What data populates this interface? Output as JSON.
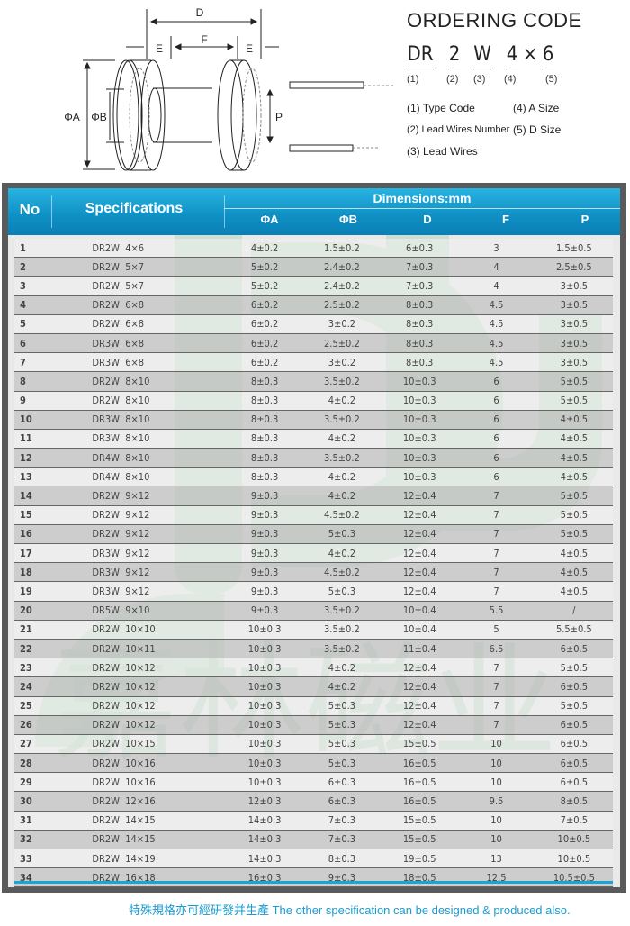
{
  "diagram": {
    "labels": {
      "d": "D",
      "e_left": "E",
      "f": "F",
      "e_right": "E",
      "phi_a": "ΦA",
      "phi_b": "ΦB",
      "p": "P"
    }
  },
  "ordering": {
    "title": "ORDERING CODE",
    "code": [
      "DR",
      "2",
      "W",
      "4",
      "×",
      "6"
    ],
    "indices": [
      "(1)",
      "(2)",
      "(3)",
      "(4)",
      "(5)"
    ],
    "legend": [
      "(1) Type Code",
      "(4) A Size",
      "(2) Lead Wires Number",
      "(5) D Size",
      "(3) Lead Wires"
    ]
  },
  "watermark": {
    "text": "嘉林磁业",
    "color": "#b9d6bf"
  },
  "table": {
    "header": {
      "no": "No",
      "spec": "Specifications",
      "dims": "Dimensions:mm",
      "cols": [
        "ΦA",
        "ΦB",
        "D",
        "F",
        "P"
      ]
    },
    "rows": [
      [
        "1",
        "DR2W  4×6",
        "4±0.2",
        "1.5±0.2",
        "6±0.3",
        "3",
        "1.5±0.5"
      ],
      [
        "2",
        "DR2W  5×7",
        "5±0.2",
        "2.4±0.2",
        "7±0.3",
        "4",
        "2.5±0.5"
      ],
      [
        "3",
        "DR2W  5×7",
        "5±0.2",
        "2.4±0.2",
        "7±0.3",
        "4",
        "3±0.5"
      ],
      [
        "4",
        "DR2W  6×8",
        "6±0.2",
        "2.5±0.2",
        "8±0.3",
        "4.5",
        "3±0.5"
      ],
      [
        "5",
        "DR2W  6×8",
        "6±0.2",
        "3±0.2",
        "8±0.3",
        "4.5",
        "3±0.5"
      ],
      [
        "6",
        "DR3W  6×8",
        "6±0.2",
        "2.5±0.2",
        "8±0.3",
        "4.5",
        "3±0.5"
      ],
      [
        "7",
        "DR3W  6×8",
        "6±0.2",
        "3±0.2",
        "8±0.3",
        "4.5",
        "3±0.5"
      ],
      [
        "8",
        "DR2W  8×10",
        "8±0.3",
        "3.5±0.2",
        "10±0.3",
        "6",
        "5±0.5"
      ],
      [
        "9",
        "DR2W  8×10",
        "8±0.3",
        "4±0.2",
        "10±0.3",
        "6",
        "5±0.5"
      ],
      [
        "10",
        "DR3W  8×10",
        "8±0.3",
        "3.5±0.2",
        "10±0.3",
        "6",
        "4±0.5"
      ],
      [
        "11",
        "DR3W  8×10",
        "8±0.3",
        "4±0.2",
        "10±0.3",
        "6",
        "4±0.5"
      ],
      [
        "12",
        "DR4W  8×10",
        "8±0.3",
        "3.5±0.2",
        "10±0.3",
        "6",
        "4±0.5"
      ],
      [
        "13",
        "DR4W  8×10",
        "8±0.3",
        "4±0.2",
        "10±0.3",
        "6",
        "4±0.5"
      ],
      [
        "14",
        "DR2W  9×12",
        "9±0.3",
        "4±0.2",
        "12±0.4",
        "7",
        "5±0.5"
      ],
      [
        "15",
        "DR2W  9×12",
        "9±0.3",
        "4.5±0.2",
        "12±0.4",
        "7",
        "5±0.5"
      ],
      [
        "16",
        "DR2W  9×12",
        "9±0.3",
        "5±0.3",
        "12±0.4",
        "7",
        "5±0.5"
      ],
      [
        "17",
        "DR3W  9×12",
        "9±0.3",
        "4±0.2",
        "12±0.4",
        "7",
        "4±0.5"
      ],
      [
        "18",
        "DR3W  9×12",
        "9±0.3",
        "4.5±0.2",
        "12±0.4",
        "7",
        "4±0.5"
      ],
      [
        "19",
        "DR3W  9×12",
        "9±0.3",
        "5±0.3",
        "12±0.4",
        "7",
        "4±0.5"
      ],
      [
        "20",
        "DR5W  9×10",
        "9±0.3",
        "3.5±0.2",
        "10±0.4",
        "5.5",
        "/"
      ],
      [
        "21",
        "DR2W  10×10",
        "10±0.3",
        "3.5±0.2",
        "10±0.4",
        "5",
        "5.5±0.5"
      ],
      [
        "22",
        "DR2W  10×11",
        "10±0.3",
        "3.5±0.2",
        "11±0.4",
        "6.5",
        "6±0.5"
      ],
      [
        "23",
        "DR2W  10×12",
        "10±0.3",
        "4±0.2",
        "12±0.4",
        "7",
        "5±0.5"
      ],
      [
        "24",
        "DR2W  10×12",
        "10±0.3",
        "4±0.2",
        "12±0.4",
        "7",
        "6±0.5"
      ],
      [
        "25",
        "DR2W  10×12",
        "10±0.3",
        "5±0.3",
        "12±0.4",
        "7",
        "5±0.5"
      ],
      [
        "26",
        "DR2W  10×12",
        "10±0.3",
        "5±0.3",
        "12±0.4",
        "7",
        "6±0.5"
      ],
      [
        "27",
        "DR2W  10×15",
        "10±0.3",
        "5±0.3",
        "15±0.5",
        "10",
        "6±0.5"
      ],
      [
        "28",
        "DR2W  10×16",
        "10±0.3",
        "5±0.3",
        "16±0.5",
        "10",
        "6±0.5"
      ],
      [
        "29",
        "DR2W  10×16",
        "10±0.3",
        "6±0.3",
        "16±0.5",
        "10",
        "6±0.5"
      ],
      [
        "30",
        "DR2W  12×16",
        "12±0.3",
        "6±0.3",
        "16±0.5",
        "9.5",
        "8±0.5"
      ],
      [
        "31",
        "DR2W  14×15",
        "14±0.3",
        "7±0.3",
        "15±0.5",
        "10",
        "7±0.5"
      ],
      [
        "32",
        "DR2W  14×15",
        "14±0.3",
        "7±0.3",
        "15±0.5",
        "10",
        "10±0.5"
      ],
      [
        "33",
        "DR2W  14×19",
        "14±0.3",
        "8±0.3",
        "19±0.5",
        "13",
        "10±0.5"
      ],
      [
        "34",
        "DR2W  16×18",
        "16±0.3",
        "9±0.3",
        "18±0.5",
        "12.5",
        "10.5±0.5"
      ]
    ]
  },
  "footer": {
    "text": "特殊規格亦可經研發并生產  The other specification can be designed & produced also."
  },
  "colors": {
    "header_blue": "#1a9fd4",
    "frame": "#5a5a5a",
    "footer_text": "#1a9bd0"
  }
}
